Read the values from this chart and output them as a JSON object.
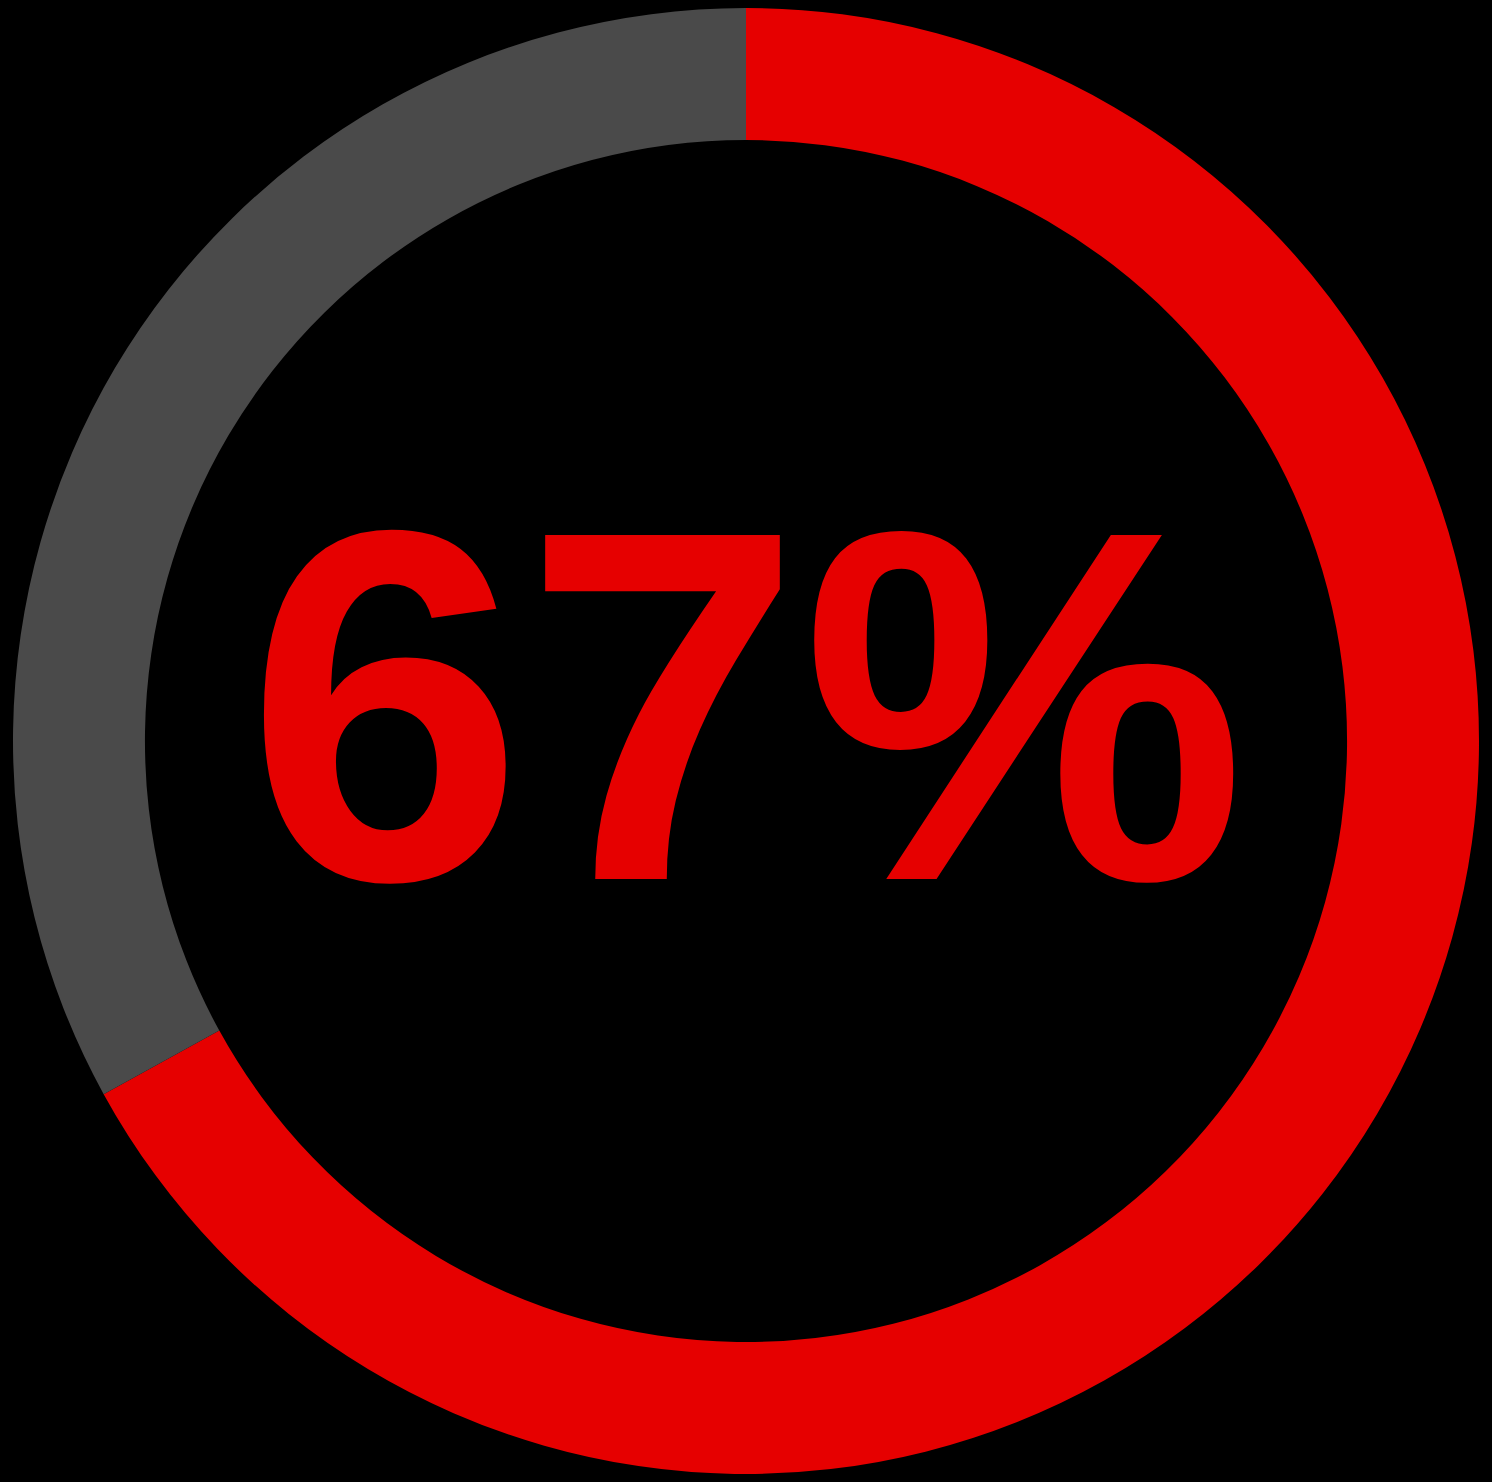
{
  "chart_data": {
    "type": "donut",
    "categories": [
      null,
      null
    ],
    "values": [
      67,
      33
    ],
    "colors": [
      "#e60000",
      "#4a4a4a"
    ],
    "value_labels": [
      "67%",
      null
    ],
    "legend": false
  }
}
